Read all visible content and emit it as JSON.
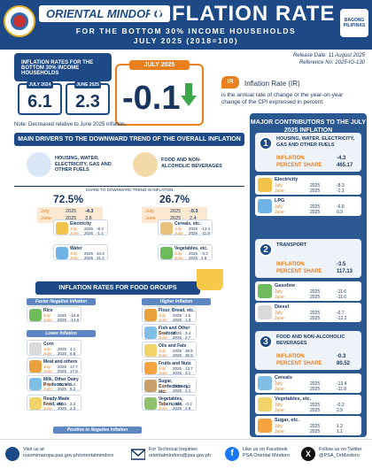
{
  "header": {
    "org": "ORIENTAL MINDORO",
    "title": "INFLATION RATE",
    "sub1": "FOR THE BOTTOM 30% INCOME HOUSEHOLDS",
    "sub2": "JULY 2025 (2018=100)",
    "badge": "BAGONG PILIPINAS"
  },
  "release": {
    "date": "Release Date: 11 August 2025",
    "ref": "Reference No: 2025-IG-130"
  },
  "rates": {
    "panel_title": "INFLATION RATES FOR THE BOTTOM 30% INCOME HOUSEHOLDS",
    "y1_label": "JULY 2024",
    "y1_value": "6.1",
    "y2_label": "JUNE 2025",
    "y2_value": "2.3",
    "cur_label": "JULY 2025",
    "cur_value": "-0.1",
    "note": "Note:  Decreased relative to June 2025 inflation."
  },
  "ir_def": {
    "title": "Inflation Rate (IR)",
    "text": "is the annual rate of change or the year-on-year change of the CPI expressed in percent."
  },
  "drivers": {
    "title": "MAIN DRIVERS TO THE DOWNWARD TREND OF THE OVERALL INFLATION",
    "d1_label": "HOUSING, WATER, ELECTRICITY, GAS AND OTHER FUELS",
    "d2_label": "FOOD AND NON-ALCOHOLIC BEVERAGES",
    "share_label": "SHARE TO DOWNWARD TREND IN INFLATION",
    "d1_pct": "72.5%",
    "d2_pct": "26.7%",
    "d1_july": "July",
    "d1_june": "June",
    "d1_y1": "2025",
    "d1_y2": "2025",
    "d1_v1": "-4.3",
    "d1_v2": "3.8",
    "d2_july": "July",
    "d2_june": "June",
    "d2_y1": "2025",
    "d2_y2": "2025",
    "d2_v1": "-0.3",
    "d2_v2": "2.4",
    "items": [
      {
        "name": "Electricity",
        "a": "July",
        "b": "June",
        "c": "2025",
        "d": "2025",
        "e": "-8.3",
        "f": "-1.1"
      },
      {
        "name": "Water",
        "a": "July",
        "b": "June",
        "c": "2025",
        "d": "2025",
        "e": "34.3",
        "f": "31.4"
      },
      {
        "name": "Cereals, etc.",
        "a": "July",
        "b": "June",
        "c": "2025",
        "d": "2025",
        "e": "-13.4",
        "f": "-11.8"
      },
      {
        "name": "Vegetables, etc.",
        "a": "July",
        "b": "June",
        "c": "2025",
        "d": "2025",
        "e": "-0.2",
        "f": "2.9"
      }
    ]
  },
  "food": {
    "title": "INFLATION RATES FOR FOOD GROUPS",
    "faster": "Faster Negative Inflation",
    "lower": "Lower Inflation",
    "higher": "Higher Inflation",
    "positive": "Positive to Negative Inflation",
    "left": [
      {
        "name": "Rice",
        "a": "July",
        "b": "June",
        "c": "2025",
        "d": "2025",
        "e": "-16.8",
        "f": "-14.6"
      },
      {
        "name": "Corn",
        "a": "July",
        "b": "June",
        "c": "2025",
        "d": "2025",
        "e": "4.1",
        "f": "6.5"
      },
      {
        "name": "Meat and others",
        "a": "July",
        "b": "June",
        "c": "2025",
        "d": "2025",
        "e": "17.7",
        "f": "17.8"
      },
      {
        "name": "Milk, Other Dairy Products, etc.",
        "a": "July",
        "b": "June",
        "c": "2025",
        "d": "2025",
        "e": "2.4",
        "f": "5.2"
      },
      {
        "name": "Ready-Made Food, etc.",
        "a": "July",
        "b": "June",
        "c": "2025",
        "d": "2025",
        "e": "2.2",
        "f": "2.3"
      }
    ],
    "right": [
      {
        "name": "Flour, Bread, etc.",
        "a": "July",
        "b": "June",
        "c": "2025",
        "d": "2025",
        "e": "1.5",
        "f": "1.3"
      },
      {
        "name": "Fish and Other Seafood",
        "a": "July",
        "b": "June",
        "c": "2025",
        "d": "2025",
        "e": "3.4",
        "f": "2.7"
      },
      {
        "name": "Oils and Fats",
        "a": "July",
        "b": "June",
        "c": "2025",
        "d": "2025",
        "e": "36.9",
        "f": "36.8"
      },
      {
        "name": "Fruits and Nuts",
        "a": "July",
        "b": "June",
        "c": "2025",
        "d": "2025",
        "e": "13.7",
        "f": "3.1"
      },
      {
        "name": "Sugar, Confectionery, etc.",
        "a": "July",
        "b": "June",
        "c": "2025",
        "d": "2025",
        "e": "1.2",
        "f": "1.1"
      },
      {
        "name": "Vegetables, Tubers, etc.",
        "a": "July",
        "b": "June",
        "c": "2025",
        "d": "2025",
        "e": "-0.2",
        "f": "2.9"
      }
    ]
  },
  "major": {
    "title": "MAJOR CONTRIBUTORS TO THE JULY 2025 INFLATION",
    "groups": [
      {
        "num": "1",
        "name": "HOUSING, WATER, ELECTRICITY, GAS AND OTHER FUELS",
        "inf_l": "INFLATION",
        "inf_v": "-4.3",
        "sh_l": "PERCENT SHARE",
        "sh_v": "465.17",
        "items": [
          {
            "name": "Electricity",
            "a": "July",
            "b": "June",
            "c": "2025",
            "d": "2025",
            "e": "-8.3",
            "f": "-1.1"
          },
          {
            "name": "LPG",
            "a": "July",
            "b": "June",
            "c": "2025",
            "d": "2025",
            "e": "-6.8",
            "f": "0.9"
          }
        ]
      },
      {
        "num": "2",
        "name": "TRANSPORT",
        "inf_l": "INFLATION",
        "inf_v": "-3.5",
        "sh_l": "PERCENT SHARE",
        "sh_v": "117.13",
        "items": [
          {
            "name": "Gasoline",
            "a": "July",
            "b": "June",
            "c": "2025",
            "d": "2025",
            "e": "-11.6",
            "f": "-11.6"
          },
          {
            "name": "Diesel",
            "a": "July",
            "b": "June",
            "c": "2025",
            "d": "2025",
            "e": "-6.7",
            "f": "-12.2"
          }
        ]
      },
      {
        "num": "3",
        "name": "FOOD AND NON-ALCOHOLIC BEVERAGES",
        "inf_l": "INFLATION",
        "inf_v": "-0.3",
        "sh_l": "PERCENT SHARE",
        "sh_v": "80.52",
        "items": [
          {
            "name": "Cereals",
            "a": "July",
            "b": "June",
            "c": "2025",
            "d": "2025",
            "e": "-13.4",
            "f": "-11.8"
          },
          {
            "name": "Vegetables, etc.",
            "a": "July",
            "b": "June",
            "c": "2025",
            "d": "2025",
            "e": "-0.2",
            "f": "2.9"
          },
          {
            "name": "Sugar, etc.",
            "a": "July",
            "b": "June",
            "c": "2025",
            "d": "2025",
            "e": "1.2",
            "f": "1.1"
          }
        ]
      }
    ]
  },
  "footer": {
    "visit_l": "Visit us at",
    "visit_v": "rssomimaropa.psa.gov.ph/orientalmindoro",
    "tech_l": "For Technical Inquiries",
    "tech_v": "orientalmindoro@psa.gov.ph",
    "fb_l": "Like us on Facebook",
    "fb_v": "PSA Oriental Mindoro",
    "tw_l": "Follow us on Twitter",
    "tw_v": "@PSA_OrMindoro"
  },
  "colors": {
    "navy": "#1d4a86",
    "orange": "#e97f1f",
    "green": "#3aa848"
  }
}
